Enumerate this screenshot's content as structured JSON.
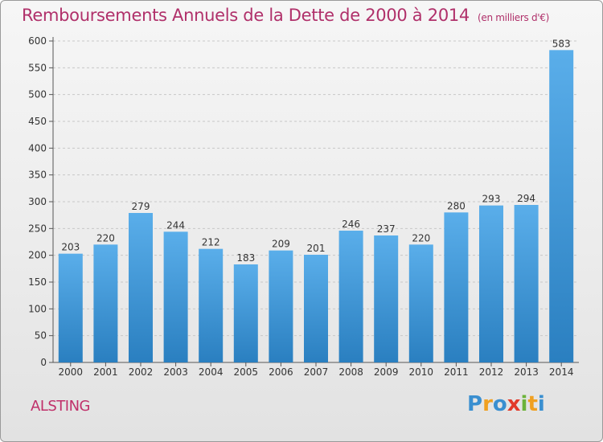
{
  "title": "Remboursements Annuels de la Dette de 2000 à 2014",
  "unit": "(en milliers d'€)",
  "town": "ALSTING",
  "logo": [
    "P",
    "r",
    "o",
    "x",
    "i",
    "t",
    "i"
  ],
  "colors": {
    "bar_top": "#5aaeea",
    "bar_bottom": "#2a7fc0",
    "title": "#b0306a"
  },
  "chart_data": {
    "type": "bar",
    "title": "Remboursements Annuels de la Dette de 2000 à 2014",
    "xlabel": "",
    "ylabel": "",
    "ylim": [
      0,
      600
    ],
    "yticks": [
      0,
      50,
      100,
      150,
      200,
      250,
      300,
      350,
      400,
      450,
      500,
      550,
      600
    ],
    "grid": true,
    "categories": [
      "2000",
      "2001",
      "2002",
      "2003",
      "2004",
      "2005",
      "2006",
      "2007",
      "2008",
      "2009",
      "2010",
      "2011",
      "2012",
      "2013",
      "2014"
    ],
    "values": [
      203,
      220,
      279,
      244,
      212,
      183,
      209,
      201,
      246,
      237,
      220,
      280,
      293,
      294,
      583
    ]
  }
}
